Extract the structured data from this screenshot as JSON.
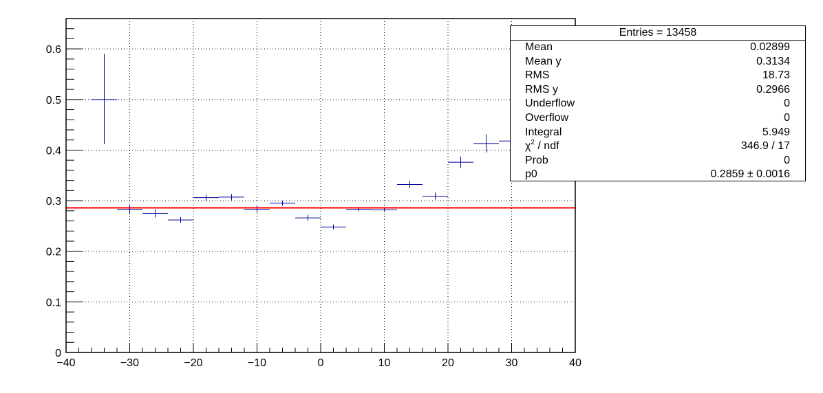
{
  "chart_data": {
    "type": "scatter",
    "title": "",
    "xlabel": "",
    "ylabel": "",
    "xlim": [
      -40,
      40
    ],
    "ylim": [
      0,
      0.66
    ],
    "grid": true,
    "x_ticks": [
      "−40",
      "−30",
      "−20",
      "−10",
      "0",
      "10",
      "20",
      "30",
      "40"
    ],
    "x_tick_values": [
      -40,
      -30,
      -20,
      -10,
      0,
      10,
      20,
      30,
      40
    ],
    "y_ticks": [
      "0",
      "0.1",
      "0.2",
      "0.3",
      "0.4",
      "0.5",
      "0.6"
    ],
    "y_tick_values": [
      0,
      0.1,
      0.2,
      0.3,
      0.4,
      0.5,
      0.6
    ],
    "series": [
      {
        "color": "#000099",
        "points": [
          {
            "x": -34,
            "y": 0.5,
            "xerr": 2,
            "yerr_low": 0.088,
            "yerr_high": 0.09
          },
          {
            "x": -30,
            "y": 0.283,
            "xerr": 2,
            "yerr_low": 0.009,
            "yerr_high": 0.009
          },
          {
            "x": -26,
            "y": 0.275,
            "xerr": 2,
            "yerr_low": 0.008,
            "yerr_high": 0.008
          },
          {
            "x": -22,
            "y": 0.262,
            "xerr": 2,
            "yerr_low": 0.006,
            "yerr_high": 0.006
          },
          {
            "x": -18,
            "y": 0.306,
            "xerr": 2,
            "yerr_low": 0.006,
            "yerr_high": 0.006
          },
          {
            "x": -14,
            "y": 0.307,
            "xerr": 2,
            "yerr_low": 0.006,
            "yerr_high": 0.006
          },
          {
            "x": -10,
            "y": 0.283,
            "xerr": 2,
            "yerr_low": 0.007,
            "yerr_high": 0.007
          },
          {
            "x": -6,
            "y": 0.295,
            "xerr": 2,
            "yerr_low": 0.005,
            "yerr_high": 0.005
          },
          {
            "x": -2,
            "y": 0.266,
            "xerr": 2,
            "yerr_low": 0.006,
            "yerr_high": 0.006
          },
          {
            "x": 2,
            "y": 0.248,
            "xerr": 2,
            "yerr_low": 0.005,
            "yerr_high": 0.005
          },
          {
            "x": 6,
            "y": 0.283,
            "xerr": 2,
            "yerr_low": 0.004,
            "yerr_high": 0.004
          },
          {
            "x": 10,
            "y": 0.282,
            "xerr": 2,
            "yerr_low": 0.004,
            "yerr_high": 0.004
          },
          {
            "x": 14,
            "y": 0.332,
            "xerr": 2,
            "yerr_low": 0.007,
            "yerr_high": 0.007
          },
          {
            "x": 18,
            "y": 0.309,
            "xerr": 2,
            "yerr_low": 0.007,
            "yerr_high": 0.007
          },
          {
            "x": 22,
            "y": 0.376,
            "xerr": 2,
            "yerr_low": 0.011,
            "yerr_high": 0.011
          },
          {
            "x": 26,
            "y": 0.413,
            "xerr": 2,
            "yerr_low": 0.018,
            "yerr_high": 0.018
          },
          {
            "x": 30,
            "y": 0.418,
            "xerr": 2,
            "yerr_low": 0.015,
            "yerr_high": 0.015
          }
        ]
      }
    ],
    "fit": {
      "type": "constant",
      "value": 0.2859,
      "color": "#ff0000",
      "x_range": [
        -40,
        40
      ]
    }
  },
  "stats_box": {
    "title": "Entries = 13458",
    "rows": [
      {
        "label": "Mean",
        "value": "0.02899"
      },
      {
        "label": "Mean y",
        "value": "0.3134"
      },
      {
        "label": "RMS",
        "value": "18.73"
      },
      {
        "label": "RMS y",
        "value": "0.2966"
      },
      {
        "label": "Underflow",
        "value": "0"
      },
      {
        "label": "Overflow",
        "value": "0"
      },
      {
        "label": "Integral",
        "value": "5.949"
      },
      {
        "label_chi": "χ",
        "label_sup": "2",
        "label_rest": " / ndf",
        "value": "346.9 / 17"
      },
      {
        "label": "Prob",
        "value": "0"
      },
      {
        "label": "p0",
        "value": "0.2859 ± 0.0016"
      }
    ]
  }
}
